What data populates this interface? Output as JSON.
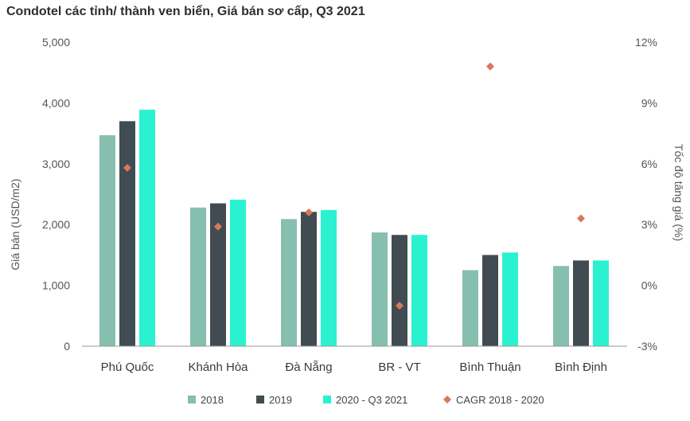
{
  "title": "Condotel các tỉnh/ thành ven biển, Giá bán sơ cấp, Q3 2021",
  "colors": {
    "s2018": "#86bfae",
    "s2019": "#404c52",
    "s2020": "#2af2d0",
    "cagr": "#d8775b",
    "axis": "#9a9a9a"
  },
  "chart_data": {
    "type": "bar",
    "title": "Condotel các tỉnh/ thành ven biển, Giá bán sơ cấp, Q3 2021",
    "categories": [
      "Phú Quốc",
      "Khánh Hòa",
      "Đà Nẵng",
      "BR - VT",
      "Bình Thuận",
      "Bình Định"
    ],
    "series": [
      {
        "name": "2018",
        "values": [
          3470,
          2280,
          2090,
          1870,
          1250,
          1320
        ]
      },
      {
        "name": "2019",
        "values": [
          3700,
          2350,
          2210,
          1830,
          1500,
          1410
        ]
      },
      {
        "name": "2020 - Q3 2021",
        "values": [
          3890,
          2410,
          2240,
          1830,
          1540,
          1410
        ]
      }
    ],
    "secondary_series": {
      "name": "CAGR 2018 - 2020",
      "type": "scatter",
      "values": [
        5.8,
        2.9,
        3.6,
        -1.0,
        10.8,
        3.3
      ]
    },
    "ylabel": "Giá bán (USD/m2)",
    "ylim": [
      0,
      5000
    ],
    "yticks": [
      "0",
      "1,000",
      "2,000",
      "3,000",
      "4,000",
      "5,000"
    ],
    "y2label": "Tốc độ tăng giá (%)",
    "y2lim": [
      -3,
      12
    ],
    "y2ticks": [
      "-3%",
      "0%",
      "3%",
      "6%",
      "9%",
      "12%"
    ],
    "grid": false,
    "legend_position": "bottom"
  }
}
